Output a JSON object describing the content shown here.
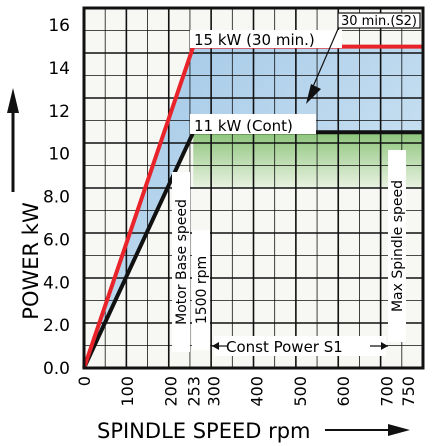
{
  "chart_data": {
    "type": "line",
    "ylabel": "POWER kW",
    "xlabel": "SPINDLE SPEED rpm",
    "y_ticks": [
      "0.0",
      "2.0",
      "4.0",
      "6.0",
      "8.0",
      "10",
      "12",
      "14",
      "16"
    ],
    "x_ticks": [
      "0",
      "100",
      "200",
      "253",
      "300",
      "400",
      "500",
      "600",
      "700",
      "750"
    ],
    "xlim": [
      0,
      785
    ],
    "ylim": [
      0,
      16.8
    ],
    "series": [
      {
        "name": "30 min. (S2)",
        "color": "#e8232a",
        "x": [
          0,
          253,
          785
        ],
        "y": [
          0,
          15,
          15
        ]
      },
      {
        "name": "Cont",
        "color": "#111111",
        "x": [
          0,
          253,
          785
        ],
        "y": [
          0,
          11,
          11
        ]
      }
    ],
    "annotations": {
      "s2_tag": "30 min.(S2)",
      "s2_line": "15 kW (30 min.)",
      "cont_line": "11 kW (Cont)",
      "motor_base": "Motor Base speed",
      "base_rpm": "1500 rpm",
      "max_spindle": "Max Spindle speed",
      "const_power": "Const Power S1"
    },
    "y_axis_arrow": "up",
    "x_axis_arrow": "right",
    "colors": {
      "grid": "#111111",
      "plot_bg": "#f6f8f4",
      "band_blue": "#b9d7ef",
      "band_green": "#9ccb8a"
    }
  }
}
